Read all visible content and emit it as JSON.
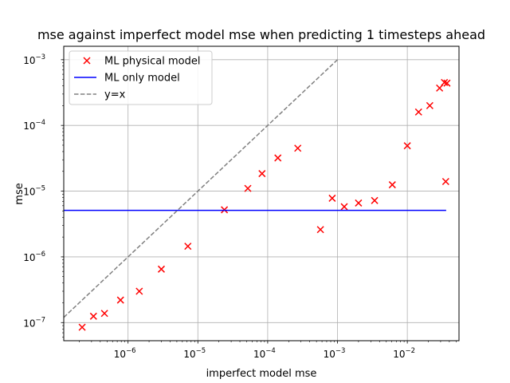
{
  "chart_data": {
    "type": "scatter",
    "title": "mse against imperfect model mse when predicting 1 timesteps ahead",
    "xlabel": "imperfect model mse",
    "ylabel": "mse",
    "xscale": "log",
    "yscale": "log",
    "xlim": [
      1.2e-07,
      0.055
    ],
    "ylim": [
      5.3e-08,
      0.0016
    ],
    "grid": true,
    "legend_position": "top-left",
    "x_ticks": [
      {
        "value": 1e-06,
        "base": "10",
        "exp": "−6"
      },
      {
        "value": 1e-05,
        "base": "10",
        "exp": "−5"
      },
      {
        "value": 0.0001,
        "base": "10",
        "exp": "−4"
      },
      {
        "value": 0.001,
        "base": "10",
        "exp": "−3"
      },
      {
        "value": 0.01,
        "base": "10",
        "exp": "−2"
      }
    ],
    "y_ticks": [
      {
        "value": 1e-07,
        "base": "10",
        "exp": "−7"
      },
      {
        "value": 1e-06,
        "base": "10",
        "exp": "−6"
      },
      {
        "value": 1e-05,
        "base": "10",
        "exp": "−5"
      },
      {
        "value": 0.0001,
        "base": "10",
        "exp": "−4"
      },
      {
        "value": 0.001,
        "base": "10",
        "exp": "−3"
      }
    ],
    "series": [
      {
        "name": "ML physical model",
        "kind": "scatter",
        "marker": "x",
        "color": "#ff0000",
        "points": [
          [
            2.2e-07,
            8.5e-08
          ],
          [
            3.2e-07,
            1.25e-07
          ],
          [
            4.6e-07,
            1.38e-07
          ],
          [
            7.8e-07,
            2.2e-07
          ],
          [
            1.45e-06,
            3e-07
          ],
          [
            3e-06,
            6.5e-07
          ],
          [
            7.2e-06,
            1.45e-06
          ],
          [
            2.4e-05,
            5.2e-06
          ],
          [
            5.2e-05,
            1.1e-05
          ],
          [
            8.3e-05,
            1.85e-05
          ],
          [
            0.00014,
            3.2e-05
          ],
          [
            0.00027,
            4.5e-05
          ],
          [
            0.00057,
            2.6e-06
          ],
          [
            0.00084,
            7.8e-06
          ],
          [
            0.00125,
            5.8e-06
          ],
          [
            0.002,
            6.6e-06
          ],
          [
            0.0034,
            7.2e-06
          ],
          [
            0.0061,
            1.25e-05
          ],
          [
            0.01,
            4.9e-05
          ],
          [
            0.0145,
            0.00016
          ],
          [
            0.021,
            0.0002
          ],
          [
            0.029,
            0.00037
          ],
          [
            0.034,
            0.00045
          ],
          [
            0.037,
            0.00044
          ],
          [
            0.0355,
            1.4e-05
          ]
        ]
      },
      {
        "name": "ML only model",
        "kind": "line",
        "style": "solid",
        "color": "#0000ff",
        "points": [
          [
            1.2e-07,
            5.1e-06
          ],
          [
            0.036,
            5.1e-06
          ]
        ]
      },
      {
        "name": "y=x",
        "kind": "line",
        "style": "dashed",
        "color": "#808080",
        "points": [
          [
            1.2e-07,
            1.2e-07
          ],
          [
            0.001,
            0.001
          ]
        ]
      }
    ]
  }
}
